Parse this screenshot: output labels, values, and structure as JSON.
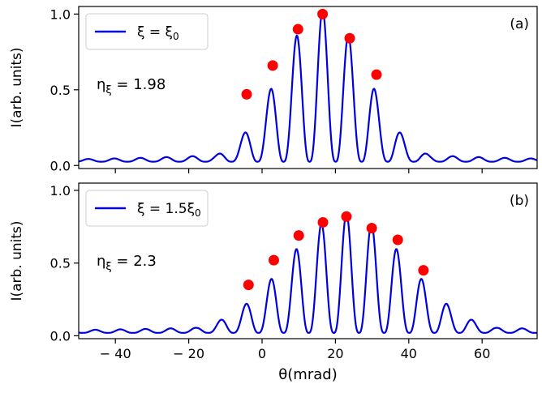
{
  "chart_data": [
    {
      "type": "line",
      "panel_label": "(a)",
      "ylabel": "I(arb. units)",
      "xlim": [
        -50,
        75
      ],
      "ylim": [
        -0.02,
        1.05
      ],
      "yticks": [
        "0.0",
        "0.5",
        "1.0"
      ],
      "legend": {
        "label": "ξ = ξ",
        "label_sub": "0",
        "placement": "top-left"
      },
      "annotation": {
        "text": "η",
        "sub": "ξ",
        "value": " = 1.98"
      },
      "series_color": "#0000dd",
      "marker_color": "#ff0000",
      "envelope": {
        "center": 16.5,
        "peak": 1.0,
        "width": 16.5,
        "period": 7.1,
        "baseline": 0.025
      },
      "markers": {
        "x": [
          -4.2,
          2.9,
          9.8,
          16.5,
          23.9,
          31.2
        ],
        "y": [
          0.47,
          0.66,
          0.9,
          1.0,
          0.84,
          0.6
        ]
      }
    },
    {
      "type": "line",
      "panel_label": "(b)",
      "ylabel": "I(arb. units)",
      "xlabel": "θ(mrad)",
      "xlim": [
        -50,
        75
      ],
      "ylim": [
        -0.02,
        1.05
      ],
      "yticks": [
        "0.0",
        "0.5",
        "1.0"
      ],
      "xticks": [
        -40,
        -20,
        0,
        20,
        40,
        60
      ],
      "xtick_labels": [
        "− 40",
        "− 20",
        "0",
        "20",
        "40",
        "60"
      ],
      "legend": {
        "label": "ξ = 1.5ξ",
        "label_sub": "0",
        "placement": "top-left"
      },
      "annotation": {
        "text": "η",
        "sub": "ξ",
        "value": " = 2.3"
      },
      "series_color": "#0000dd",
      "marker_color": "#ff0000",
      "envelope": {
        "center": 23,
        "peak": 0.82,
        "width": 23,
        "period": 6.85,
        "baseline": 0.02
      },
      "markers": {
        "x": [
          -3.7,
          3.2,
          10.0,
          16.6,
          23.0,
          29.9,
          37.0,
          44.0
        ],
        "y": [
          0.35,
          0.52,
          0.69,
          0.78,
          0.82,
          0.74,
          0.66,
          0.45
        ]
      }
    }
  ]
}
